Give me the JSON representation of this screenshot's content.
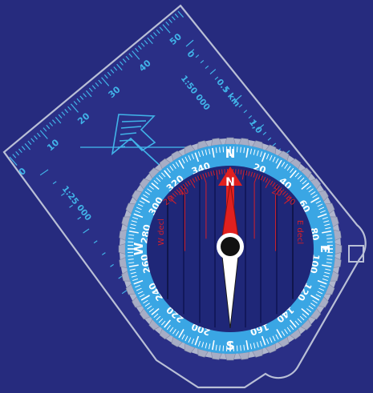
{
  "colors": {
    "background": "#262b7e",
    "baseplate_edge": "#b9bfd6",
    "scale_marks": "#41b3e8",
    "bezel_ring": "#3aa6e4",
    "bezel_text": "#ffffff",
    "capsule": "#1f2778",
    "needle_north": "#e0201f",
    "needle_south": "#ffffff",
    "declination_lines": "#d21f2a",
    "grip_teeth": "#a7adc5"
  },
  "baseplate": {
    "ruler_labels": [
      "0",
      "10",
      "20",
      "30",
      "40",
      "50"
    ],
    "upper_scale_label": "1:50 000",
    "upper_scale_ticks": [
      "0",
      "0.5 km",
      "1,0"
    ],
    "lower_scale_label": "1:25 000",
    "direction_arrow_icon": "direction-of-travel-arrow-icon",
    "lanyard_hole_icon": "lanyard-hole-icon"
  },
  "bezel": {
    "cardinals": {
      "north": "N",
      "east": "E",
      "south": "S",
      "west": "W"
    },
    "degree_labels": [
      "20",
      "40",
      "60",
      "80",
      "100",
      "120",
      "140",
      "160",
      "200",
      "220",
      "240",
      "260",
      "280",
      "300",
      "320",
      "340"
    ]
  },
  "capsule": {
    "north_marker": "N",
    "declination_left_label": "W decl",
    "declination_right_label": "E decl",
    "declination_labels": [
      "20",
      "40",
      "20",
      "40"
    ],
    "needle_icon": "magnetic-needle-icon"
  }
}
